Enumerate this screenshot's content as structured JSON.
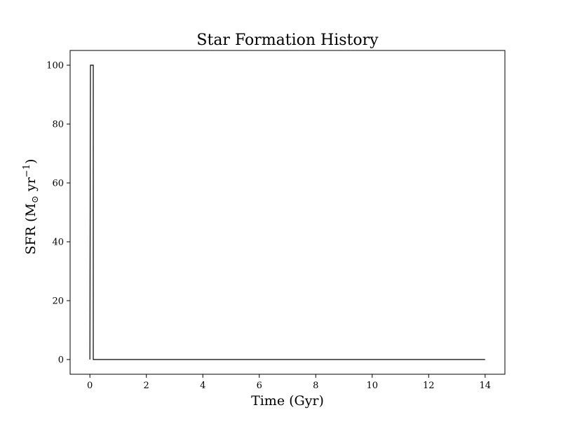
{
  "chart_data": {
    "type": "line",
    "title": "Star Formation History",
    "xlabel": "Time (Gyr)",
    "ylabel": {
      "base": "SFR (M",
      "subscript": "⊙",
      "middle": " yr",
      "superscript": "−1",
      "end": ")"
    },
    "xlim": [
      -0.7,
      14.7
    ],
    "ylim": [
      -5,
      105
    ],
    "xticks": [
      0,
      2,
      4,
      6,
      8,
      10,
      12,
      14
    ],
    "yticks": [
      0,
      20,
      40,
      60,
      80,
      100
    ],
    "grid": false,
    "line_color": "#000000",
    "series": [
      {
        "x": [
          0.0,
          0.0,
          0.02,
          0.05,
          0.1,
          0.12,
          0.12,
          14.0
        ],
        "y": [
          0,
          0,
          100,
          100,
          100,
          100,
          0,
          0
        ]
      }
    ]
  }
}
